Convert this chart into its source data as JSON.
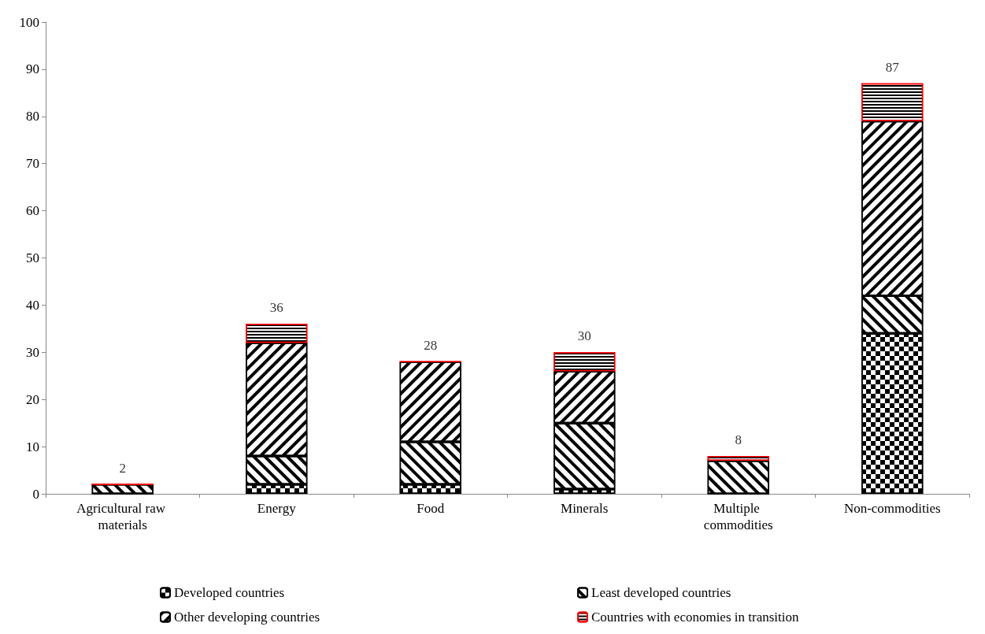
{
  "chart_data": {
    "type": "bar",
    "stacked": true,
    "categories": [
      "Agricultural raw materials",
      "Energy",
      "Food",
      "Minerals",
      "Multiple commodities",
      "Non-commodities"
    ],
    "series": [
      {
        "name": "Developed countries",
        "color": "#000000",
        "values": [
          0,
          2,
          2,
          1,
          0,
          34
        ]
      },
      {
        "name": "Least developed countries",
        "color": "#000000",
        "values": [
          2,
          6,
          9,
          14,
          7,
          8
        ]
      },
      {
        "name": "Other developing countries",
        "color": "#000000",
        "values": [
          0,
          24,
          17,
          11,
          0,
          37
        ]
      },
      {
        "name": "Countries with economies in transition",
        "color": "#ff0000",
        "values": [
          0,
          4,
          0,
          4,
          1,
          8
        ]
      }
    ],
    "totals": [
      "2",
      "36",
      "28",
      "30",
      "8",
      "87"
    ],
    "ylim": [
      0,
      100
    ],
    "yticks": [
      0,
      10,
      20,
      30,
      40,
      50,
      60,
      70,
      80,
      90,
      100
    ],
    "grid": false,
    "legend": "bottom"
  }
}
